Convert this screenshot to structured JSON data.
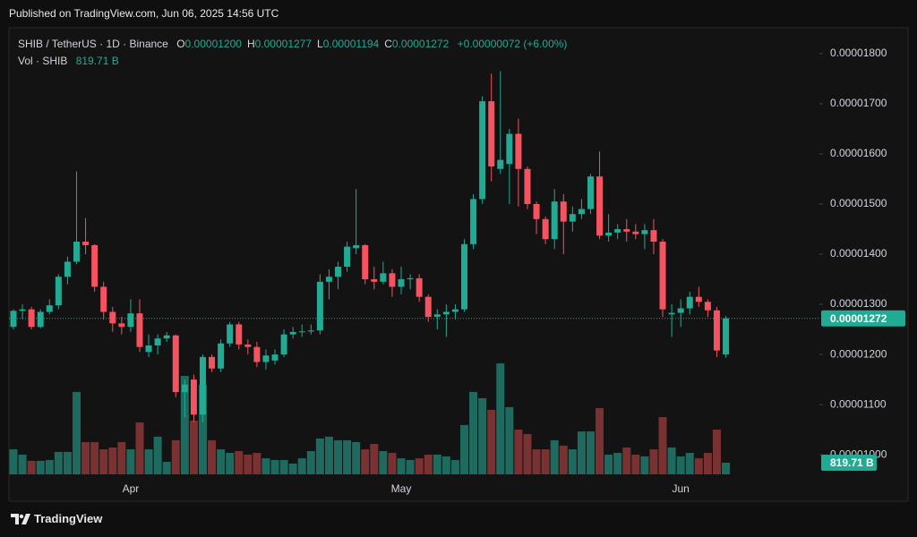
{
  "published": "Published on TradingView.com, Jun 06, 2025 14:56 UTC",
  "footer": "TradingView",
  "header": {
    "symbol": "SHIB / TetherUS · 1D · Binance",
    "ohlc": [
      {
        "key": "O",
        "value": "0.00001200"
      },
      {
        "key": "H",
        "value": "0.00001277"
      },
      {
        "key": "L",
        "value": "0.00001194"
      },
      {
        "key": "C",
        "value": "0.00001272"
      }
    ],
    "change": "+0.00000072 (+6.00%)",
    "volume_label": "Vol · SHIB",
    "volume_value": "819.71 B"
  },
  "chart_data": {
    "type": "candlestick",
    "up_color": "#22ab94",
    "down_color": "#f7525f",
    "volume_up_color": "#1f6a5f",
    "volume_down_color": "#7a3131",
    "categories": [
      null,
      null,
      null,
      null,
      null,
      null,
      null,
      null,
      null,
      null,
      null,
      null,
      null,
      "Apr",
      null,
      null,
      null,
      null,
      null,
      null,
      null,
      null,
      null,
      null,
      null,
      null,
      null,
      null,
      null,
      null,
      null,
      null,
      null,
      null,
      null,
      null,
      null,
      null,
      null,
      null,
      null,
      null,
      null,
      "May",
      null,
      null,
      null,
      null,
      null,
      null,
      null,
      null,
      null,
      null,
      null,
      null,
      null,
      null,
      null,
      null,
      null,
      null,
      null,
      null,
      null,
      null,
      null,
      null,
      null,
      null,
      null,
      null,
      null,
      null,
      "Jun",
      null,
      null,
      null,
      null,
      null
    ],
    "open": [
      1.255e-05,
      1.287e-05,
      1.29e-05,
      1.255e-05,
      1.285e-05,
      1.298e-05,
      1.355e-05,
      1.385e-05,
      1.425e-05,
      1.418e-05,
      1.335e-05,
      1.285e-05,
      1.262e-05,
      1.255e-05,
      1.282e-05,
      1.205e-05,
      1.218e-05,
      1.232e-05,
      1.238e-05,
      1.125e-05,
      1.15e-05,
      1.08e-05,
      1.195e-05,
      1.172e-05,
      1.222e-05,
      1.26e-05,
      1.22e-05,
      1.215e-05,
      1.185e-05,
      1.188e-05,
      1.2e-05,
      1.24e-05,
      1.245e-05,
      1.246e-05,
      1.248e-05,
      1.345e-05,
      1.355e-05,
      1.375e-05,
      1.412e-05,
      1.418e-05,
      1.35e-05,
      1.345e-05,
      1.362e-05,
      1.335e-05,
      1.35e-05,
      1.352e-05,
      1.315e-05,
      1.275e-05,
      1.28e-05,
      1.285e-05,
      1.29e-05,
      1.42e-05,
      1.51e-05,
      1.705e-05,
      1.57e-05,
      1.58e-05,
      1.64e-05,
      1.57e-05,
      1.5e-05,
      1.47e-05,
      1.43e-05,
      1.505e-05,
      1.465e-05,
      1.48e-05,
      1.49e-05,
      1.555e-05,
      1.437e-05,
      1.443e-05,
      1.45e-05,
      1.445e-05,
      1.44e-05,
      1.448e-05,
      1.425e-05,
      1.28e-05,
      1.283e-05,
      1.292e-05,
      1.315e-05,
      1.305e-05,
      1.288e-05,
      1.2e-05
    ],
    "high": [
      1.29e-05,
      1.3e-05,
      1.295e-05,
      1.29e-05,
      1.31e-05,
      1.36e-05,
      1.395e-05,
      1.565e-05,
      1.472e-05,
      1.42e-05,
      1.345e-05,
      1.295e-05,
      1.275e-05,
      1.31e-05,
      1.31e-05,
      1.24e-05,
      1.24e-05,
      1.245e-05,
      1.24e-05,
      1.15e-05,
      1.16e-05,
      1.2e-05,
      1.2e-05,
      1.23e-05,
      1.265e-05,
      1.265e-05,
      1.23e-05,
      1.225e-05,
      1.21e-05,
      1.21e-05,
      1.25e-05,
      1.255e-05,
      1.26e-05,
      1.26e-05,
      1.36e-05,
      1.37e-05,
      1.385e-05,
      1.425e-05,
      1.53e-05,
      1.42e-05,
      1.375e-05,
      1.385e-05,
      1.37e-05,
      1.375e-05,
      1.36e-05,
      1.36e-05,
      1.32e-05,
      1.29e-05,
      1.3e-05,
      1.3e-05,
      1.43e-05,
      1.52e-05,
      1.715e-05,
      1.76e-05,
      1.765e-05,
      1.65e-05,
      1.67e-05,
      1.575e-05,
      1.505e-05,
      1.475e-05,
      1.53e-05,
      1.52e-05,
      1.495e-05,
      1.51e-05,
      1.56e-05,
      1.605e-05,
      1.48e-05,
      1.46e-05,
      1.47e-05,
      1.46e-05,
      1.46e-05,
      1.47e-05,
      1.43e-05,
      1.3e-05,
      1.31e-05,
      1.325e-05,
      1.335e-05,
      1.31e-05,
      1.295e-05,
      1.277e-05
    ],
    "low": [
      1.25e-05,
      1.27e-05,
      1.25e-05,
      1.252e-05,
      1.28e-05,
      1.29e-05,
      1.34e-05,
      1.38e-05,
      1.4e-05,
      1.325e-05,
      1.27e-05,
      1.245e-05,
      1.24e-05,
      1.245e-05,
      1.205e-05,
      1.195e-05,
      1.2e-05,
      1.225e-05,
      1.115e-05,
      1.075e-05,
      1.065e-05,
      1.065e-05,
      1.165e-05,
      1.165e-05,
      1.215e-05,
      1.21e-05,
      1.2e-05,
      1.175e-05,
      1.17e-05,
      1.18e-05,
      1.195e-05,
      1.232e-05,
      1.235e-05,
      1.24e-05,
      1.24e-05,
      1.31e-05,
      1.33e-05,
      1.365e-05,
      1.4e-05,
      1.34e-05,
      1.33e-05,
      1.34e-05,
      1.315e-05,
      1.32e-05,
      1.33e-05,
      1.305e-05,
      1.265e-05,
      1.25e-05,
      1.235e-05,
      1.27e-05,
      1.285e-05,
      1.41e-05,
      1.5e-05,
      1.545e-05,
      1.56e-05,
      1.5e-05,
      1.495e-05,
      1.49e-05,
      1.44e-05,
      1.42e-05,
      1.41e-05,
      1.4e-05,
      1.445e-05,
      1.47e-05,
      1.48e-05,
      1.43e-05,
      1.425e-05,
      1.43e-05,
      1.425e-05,
      1.43e-05,
      1.41e-05,
      1.4e-05,
      1.275e-05,
      1.235e-05,
      1.255e-05,
      1.28e-05,
      1.295e-05,
      1.275e-05,
      1.195e-05,
      1.194e-05
    ],
    "close": [
      1.287e-05,
      1.29e-05,
      1.255e-05,
      1.285e-05,
      1.298e-05,
      1.355e-05,
      1.385e-05,
      1.425e-05,
      1.418e-05,
      1.335e-05,
      1.285e-05,
      1.262e-05,
      1.255e-05,
      1.282e-05,
      1.215e-05,
      1.218e-05,
      1.232e-05,
      1.238e-05,
      1.125e-05,
      1.14e-05,
      1.08e-05,
      1.195e-05,
      1.172e-05,
      1.222e-05,
      1.26e-05,
      1.22e-05,
      1.215e-05,
      1.185e-05,
      1.198e-05,
      1.2e-05,
      1.24e-05,
      1.245e-05,
      1.246e-05,
      1.248e-05,
      1.345e-05,
      1.355e-05,
      1.375e-05,
      1.415e-05,
      1.418e-05,
      1.35e-05,
      1.345e-05,
      1.362e-05,
      1.335e-05,
      1.35e-05,
      1.352e-05,
      1.315e-05,
      1.275e-05,
      1.28e-05,
      1.285e-05,
      1.29e-05,
      1.42e-05,
      1.51e-05,
      1.705e-05,
      1.575e-05,
      1.588e-05,
      1.64e-05,
      1.57e-05,
      1.5e-05,
      1.47e-05,
      1.43e-05,
      1.505e-05,
      1.465e-05,
      1.48e-05,
      1.49e-05,
      1.555e-05,
      1.437e-05,
      1.443e-05,
      1.45e-05,
      1.445e-05,
      1.44e-05,
      1.448e-05,
      1.425e-05,
      1.29e-05,
      1.283e-05,
      1.292e-05,
      1.315e-05,
      1.305e-05,
      1.288e-05,
      1.208e-05,
      1.272e-05
    ],
    "volume": [
      1760,
      1390,
      950,
      950,
      1010,
      1580,
      1580,
      5800,
      2270,
      2270,
      1760,
      1890,
      2270,
      1760,
      3650,
      1760,
      2650,
      880,
      2400,
      6930,
      3780,
      6300,
      2400,
      1760,
      1510,
      1640,
      1390,
      1510,
      1130,
      1010,
      1010,
      760,
      1130,
      1640,
      2520,
      2650,
      2400,
      2400,
      2270,
      1760,
      2140,
      1640,
      1510,
      1130,
      1010,
      1130,
      1390,
      1390,
      1260,
      1010,
      3470,
      5800,
      5360,
      4540,
      7810,
      4730,
      3150,
      2840,
      1760,
      1760,
      2400,
      2020,
      1760,
      3020,
      3020,
      4660,
      1390,
      1510,
      1890,
      1390,
      1260,
      1760,
      4030,
      1890,
      1260,
      1510,
      1130,
      1510,
      3150,
      819.71
    ],
    "ylim": [
      9.61e-06,
      1.848e-05
    ],
    "yticks": [
      {
        "value": 1e-05,
        "label": "0.00001000"
      },
      {
        "value": 1.1e-05,
        "label": "0.00001100"
      },
      {
        "value": 1.2e-05,
        "label": "0.00001200"
      },
      {
        "value": 1.3e-05,
        "label": "0.00001300"
      },
      {
        "value": 1.4e-05,
        "label": "0.00001400"
      },
      {
        "value": 1.5e-05,
        "label": "0.00001500"
      },
      {
        "value": 1.6e-05,
        "label": "0.00001600"
      },
      {
        "value": 1.7e-05,
        "label": "0.00001700"
      },
      {
        "value": 1.8e-05,
        "label": "0.00001800"
      }
    ]
  }
}
